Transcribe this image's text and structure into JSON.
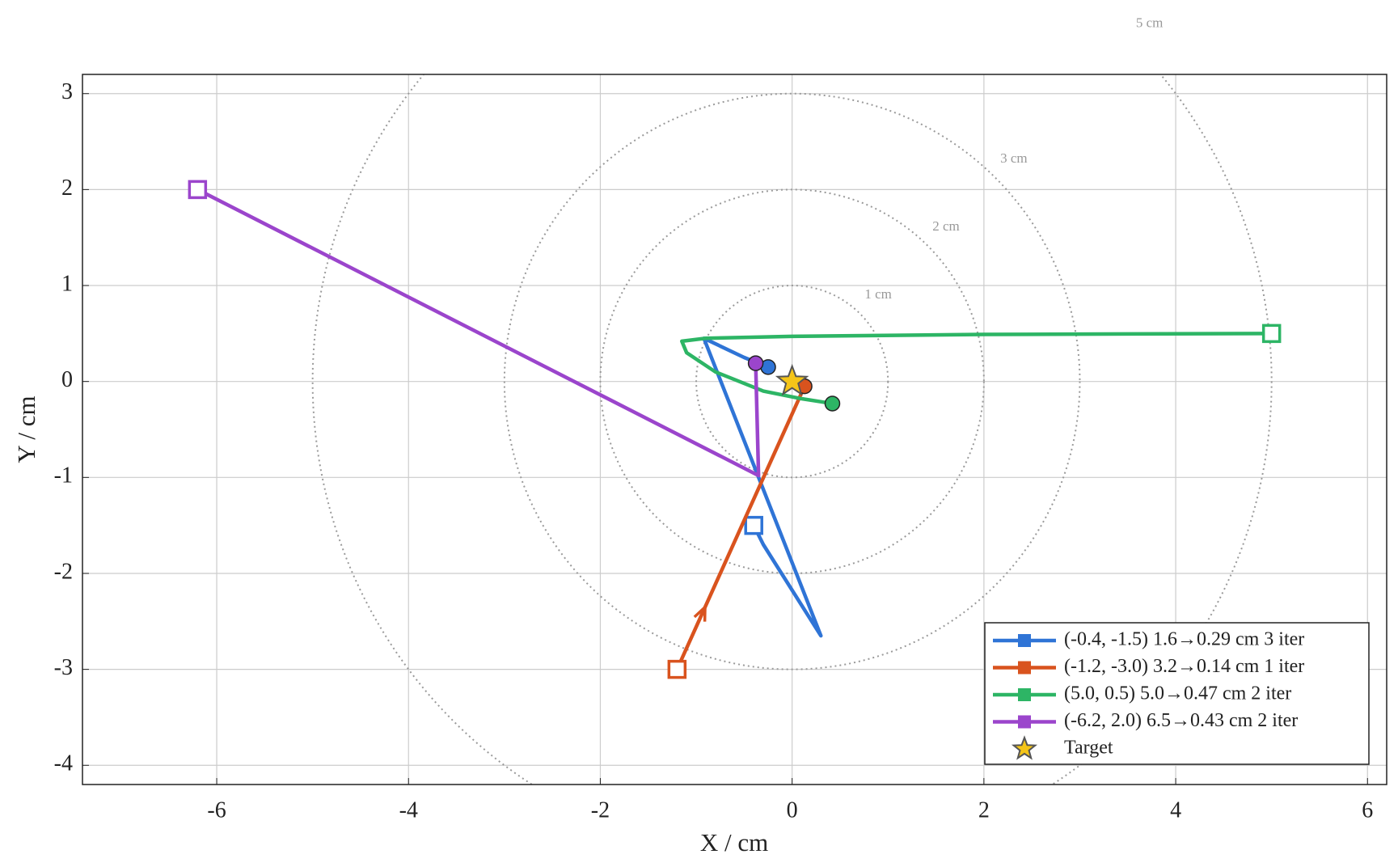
{
  "chart_data": {
    "type": "line",
    "x_label": "X / cm",
    "y_label": "Y / cm",
    "xlim": [
      -7.4,
      6.2
    ],
    "ylim": [
      -4.2,
      3.2
    ],
    "xticks": [
      -6,
      -4,
      -2,
      0,
      2,
      4,
      6
    ],
    "yticks": [
      -4,
      -3,
      -2,
      -1,
      0,
      1,
      2,
      3
    ],
    "grid": true,
    "rings": [
      {
        "radius": 1,
        "label": "1 cm"
      },
      {
        "radius": 2,
        "label": "2 cm"
      },
      {
        "radius": 3,
        "label": "3 cm"
      },
      {
        "radius": 5,
        "label": "5 cm"
      }
    ],
    "series": [
      {
        "name": "(-0.4, -1.5)  1.6→0.29 cm  3 iter",
        "color": "#2f74d6",
        "x": [
          -0.4,
          -0.3,
          0.3,
          -0.92,
          -0.5,
          -0.25
        ],
        "y": [
          -1.5,
          -1.7,
          -2.65,
          0.45,
          0.25,
          0.15
        ]
      },
      {
        "name": "(-1.2, -3.0)  3.2→0.14 cm  1 iter",
        "color": "#d9531e",
        "x": [
          -1.2,
          0.13
        ],
        "y": [
          -3.0,
          -0.05
        ]
      },
      {
        "name": "(5.0, 0.5)  5.0→0.47 cm  2 iter",
        "color": "#2db565",
        "x": [
          5.0,
          2.0,
          0.0,
          -0.9,
          -1.15,
          -1.1,
          -0.8,
          -0.3,
          0.1,
          0.42
        ],
        "y": [
          0.5,
          0.49,
          0.47,
          0.45,
          0.42,
          0.3,
          0.1,
          -0.1,
          -0.18,
          -0.23
        ]
      },
      {
        "name": "(-6.2, 2.0)  6.5→0.43 cm  2 iter",
        "color": "#9b45cc",
        "x": [
          -6.2,
          -0.35,
          -0.38
        ],
        "y": [
          2.0,
          -0.98,
          0.19
        ]
      }
    ],
    "target": {
      "name": "Target",
      "x": 0,
      "y": 0,
      "color": "#f5c518"
    },
    "legend": "lower right"
  }
}
